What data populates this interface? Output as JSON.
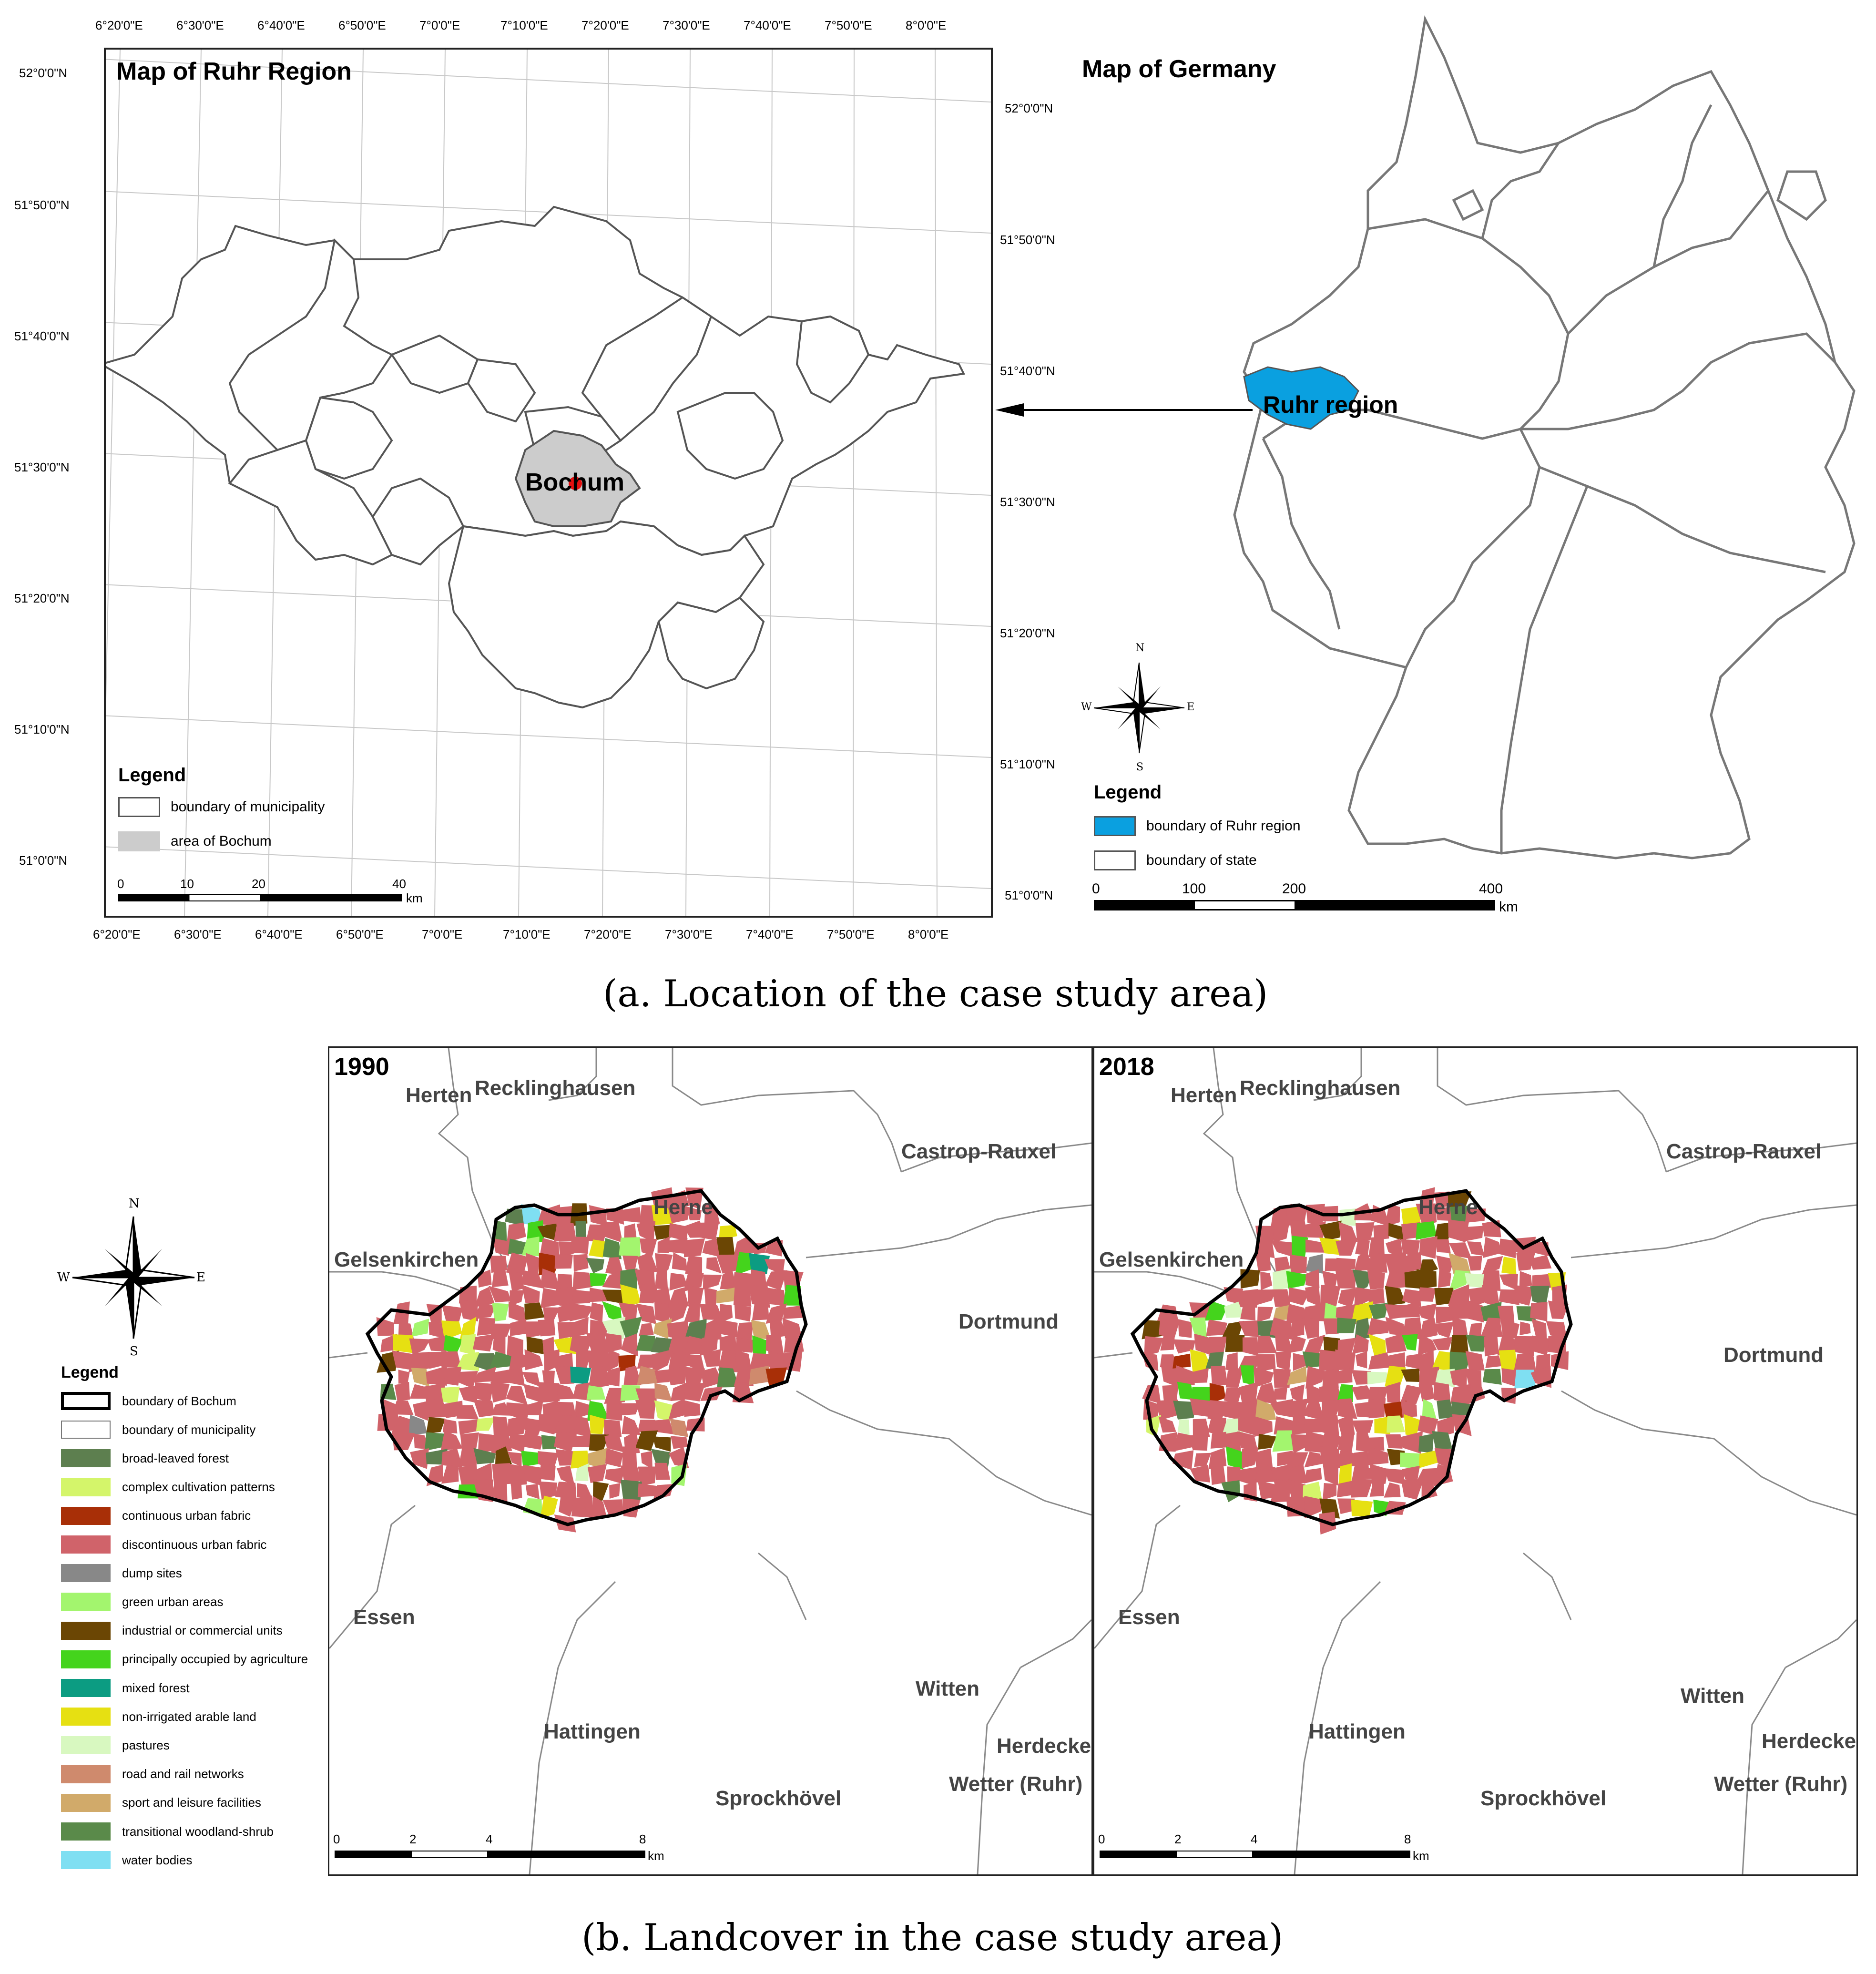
{
  "map_ruhr": {
    "title": "Map of Ruhr Region",
    "lon_ticks": [
      "6°20'0\"E",
      "6°30'0\"E",
      "6°40'0\"E",
      "6°50'0\"E",
      "7°0'0\"E",
      "7°10'0\"E",
      "7°20'0\"E",
      "7°30'0\"E",
      "7°40'0\"E",
      "7°50'0\"E",
      "8°0'0\"E"
    ],
    "lat_ticks_left": [
      "52°0'0\"N",
      "51°50'0\"N",
      "51°40'0\"N",
      "51°30'0\"N",
      "51°20'0\"N",
      "51°10'0\"N",
      "51°0'0\"N"
    ],
    "lat_ticks_right": [
      "52°0'0\"N",
      "51°50'0\"N",
      "51°40'0\"N",
      "51°30'0\"N",
      "51°20'0\"N",
      "51°10'0\"N",
      "51°0'0\"N"
    ],
    "city_label": "Bochum",
    "legend": {
      "title": "Legend",
      "items": [
        {
          "label": "boundary of municipality",
          "color": "#ffffff"
        },
        {
          "label": "area of Bochum",
          "color": "#cccccc"
        }
      ]
    },
    "scale": {
      "labels": [
        "0",
        "10",
        "20",
        "40"
      ],
      "unit": "km"
    }
  },
  "map_germany": {
    "title": "Map of Germany",
    "region_label": "Ruhr region",
    "compass": {
      "n": "N",
      "s": "S",
      "e": "E",
      "w": "W"
    },
    "legend": {
      "title": "Legend",
      "items": [
        {
          "label": "boundary of Ruhr region",
          "color": "#0aa0e0"
        },
        {
          "label": "boundary of state",
          "color": "#ffffff"
        }
      ]
    },
    "scale": {
      "labels": [
        "0",
        "100",
        "200",
        "400"
      ],
      "unit": "km"
    }
  },
  "caption_a": "(a. Location of the case study area)",
  "landcover": {
    "compass": {
      "n": "N",
      "s": "S",
      "e": "E",
      "w": "W"
    },
    "legend": {
      "title": "Legend",
      "items": [
        {
          "label": "boundary of Bochum",
          "color": "#ffffff",
          "border": "thick"
        },
        {
          "label": "boundary of municipality",
          "color": "#ffffff",
          "border": "thin"
        },
        {
          "label": "broad-leaved forest",
          "color": "#5d7f4f"
        },
        {
          "label": "complex cultivation patterns",
          "color": "#d4f56a"
        },
        {
          "label": "continuous urban fabric",
          "color": "#a82f07"
        },
        {
          "label": "discontinuous urban fabric",
          "color": "#d0636a"
        },
        {
          "label": "dump sites",
          "color": "#888888"
        },
        {
          "label": "green urban areas",
          "color": "#a3f56e"
        },
        {
          "label": "industrial or commercial units",
          "color": "#6b4604"
        },
        {
          "label": "principally occupied by agriculture",
          "color": "#44d41c"
        },
        {
          "label": "mixed forest",
          "color": "#0c9c82"
        },
        {
          "label": "non-irrigated arable land",
          "color": "#e6e012"
        },
        {
          "label": "pastures",
          "color": "#d8f8c0"
        },
        {
          "label": "road and rail networks",
          "color": "#cf8a6d"
        },
        {
          "label": "sport and leisure facilities",
          "color": "#d1aa6a"
        },
        {
          "label": "transitional woodland-shrub",
          "color": "#5a8a4a"
        },
        {
          "label": "water bodies",
          "color": "#7fdff2"
        }
      ]
    },
    "panels": [
      {
        "year": "1990",
        "places": [
          "Herten",
          "Recklinghausen",
          "Castrop-Rauxel",
          "Herne",
          "Gelsenkirchen",
          "Dortmund",
          "Essen",
          "Witten",
          "Hattingen",
          "Herdecke",
          "Wetter (Ruhr)",
          "Sprockhövel"
        ],
        "scale": {
          "labels": [
            "0",
            "2",
            "4",
            "8"
          ],
          "unit": "km"
        }
      },
      {
        "year": "2018",
        "places": [
          "Herten",
          "Recklinghausen",
          "Castrop-Rauxel",
          "Herne",
          "Gelsenkirchen",
          "Dortmund",
          "Essen",
          "Witten",
          "Hattingen",
          "Herdecke",
          "Wetter (Ruhr)",
          "Sprockhövel"
        ],
        "scale": {
          "labels": [
            "0",
            "2",
            "4",
            "8"
          ],
          "unit": "km"
        }
      }
    ]
  },
  "caption_b": "(b. Landcover in the case study area)"
}
